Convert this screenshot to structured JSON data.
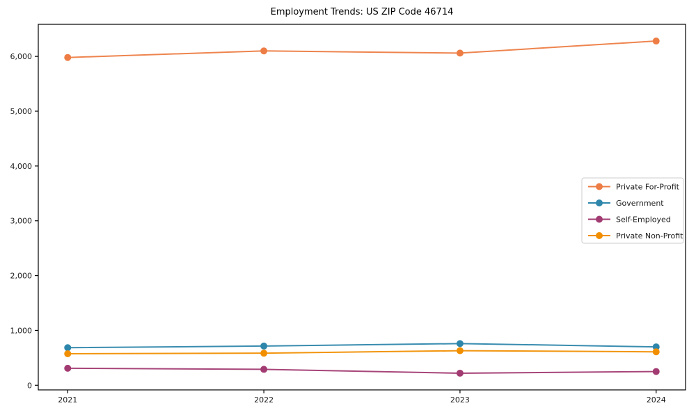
{
  "title": "Employment Trends: US ZIP Code 46714",
  "chart_data": {
    "type": "line",
    "title": "Employment Trends: US ZIP Code 46714",
    "xlabel": "",
    "ylabel": "",
    "grid": false,
    "legend_position": "center right",
    "x": [
      2021,
      2022,
      2023,
      2024
    ],
    "xticks": [
      2021,
      2022,
      2023,
      2024
    ],
    "xtick_labels": [
      "2021",
      "2022",
      "2023",
      "2024"
    ],
    "yticks": [
      0,
      1000,
      2000,
      3000,
      4000,
      5000,
      6000
    ],
    "ytick_labels": [
      "0",
      "1,000",
      "2,000",
      "3,000",
      "4,000",
      "5,000",
      "6,000"
    ],
    "xlim": [
      2020.85,
      2024.15
    ],
    "ylim": [
      -85,
      6585
    ],
    "series": [
      {
        "name": "Private For-Profit",
        "color": "#ED7D45",
        "values": [
          5980,
          6100,
          6060,
          6280
        ]
      },
      {
        "name": "Government",
        "color": "#2E86AB",
        "values": [
          685,
          715,
          760,
          700
        ]
      },
      {
        "name": "Self-Employed",
        "color": "#A23B72",
        "values": [
          310,
          290,
          220,
          250
        ]
      },
      {
        "name": "Private Non-Profit",
        "color": "#F18F01",
        "values": [
          575,
          585,
          630,
          610
        ]
      }
    ],
    "colors": {
      "spine": "#000000",
      "tick": "#000000",
      "legend_border": "#cccccc",
      "background": "#ffffff"
    }
  }
}
